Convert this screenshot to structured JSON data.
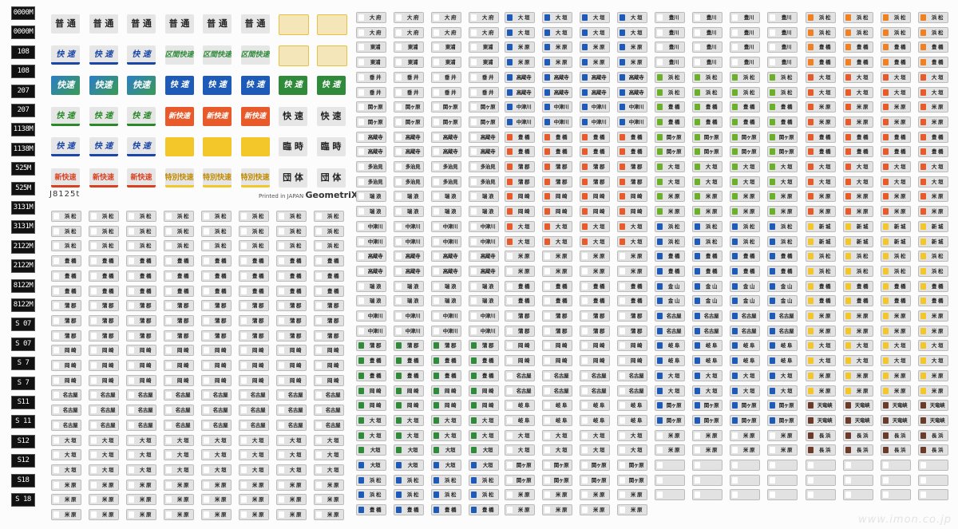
{
  "sheet": {
    "code": "J8125t",
    "brand_prefix": "Printed in JAPAN",
    "brand_name": "GeometriX",
    "watermark": "www.imon.co.jp"
  },
  "numbers": [
    "0000M",
    "0000M",
    "108",
    "108",
    "207",
    "207",
    "1138M",
    "1138M",
    "525M",
    "525M",
    "3131M",
    "3131M",
    "2122M",
    "2122M",
    "8122M",
    "8122M",
    "S 07",
    "S 07",
    "S 7",
    "S 7",
    "S11",
    "S 11",
    "S12",
    "S12",
    "S18",
    "S 18"
  ],
  "big_rows": [
    [
      "普 通",
      "普 通",
      "普 通",
      "普 通",
      "普 通",
      "普 通",
      "",
      ""
    ],
    [
      "快 速",
      "快 速",
      "快 速",
      "区間快速",
      "区間快速",
      "区間快速",
      "",
      ""
    ],
    [
      "快速",
      "快速",
      "快速",
      "快 速",
      "快 速",
      "快 速",
      "快 速",
      "快 速"
    ],
    [
      "快 速",
      "快 速",
      "快 速",
      "新快速",
      "新快速",
      "新快速",
      "快 速",
      "快 速"
    ],
    [
      "快 速",
      "快 速",
      "快 速",
      "",
      "",
      "",
      "臨 時",
      "臨 時"
    ],
    [
      "新快速",
      "新快速",
      "新快速",
      "特別快速",
      "特別快速",
      "特別快速",
      "団 体",
      "団 体"
    ]
  ],
  "colA": [
    "浜 松",
    "浜 松",
    "浜 松",
    "豊 橋",
    "豊 橋",
    "豊 橋",
    "蒲 郡",
    "蒲 郡",
    "蒲 郡",
    "岡 崎",
    "岡 崎",
    "岡 崎",
    "名古屋",
    "名古屋",
    "名古屋",
    "大 垣",
    "大 垣",
    "大 垣",
    "米 原",
    "米 原",
    "米 原"
  ],
  "colB": [
    "大 府",
    "大 府",
    "東浦",
    "東浦",
    "垂 井",
    "垂 井",
    "関ヶ原",
    "関ヶ原",
    "高蔵寺",
    "高蔵寺",
    "多治見",
    "多治見",
    "瑞 浪",
    "瑞 浪",
    "中津川",
    "中津川",
    "高蔵寺",
    "高蔵寺",
    "瑞 浪",
    "瑞 浪",
    "中津川",
    "中津川",
    "蒲 郡",
    "豊 橋",
    "豊 橋",
    "岡 崎",
    "岡 崎",
    "大 垣",
    "大 垣",
    "大垣",
    "大垣",
    "浜 松",
    "浜 松",
    "豊 橋"
  ],
  "colC": [
    "大 垣",
    "大 垣",
    "米 原",
    "米 原",
    "高蔵寺",
    "高蔵寺",
    "中津川",
    "中津川",
    "豊 橋",
    "豊 橋",
    "蒲 郡",
    "蒲 郡",
    "岡 崎",
    "岡 崎",
    "大 垣",
    "大 垣",
    "米 原",
    "米 原",
    "豊 橋",
    "豊 橋",
    "蒲 郡",
    "蒲 郡",
    "岡 崎",
    "岡 崎",
    "名古屋",
    "名古屋",
    "岐 阜",
    "岐 阜",
    "大 垣",
    "大 垣",
    "関ヶ原",
    "関ヶ原",
    "米 原",
    "米 原"
  ],
  "colD": [
    "豊川",
    "豊川",
    "豊川",
    "豊川",
    "浜 松",
    "浜 松",
    "豊 橋",
    "豊 橋",
    "関ヶ原",
    "関ヶ原",
    "大 垣",
    "大 垣",
    "米 原",
    "米 原",
    "浜 松",
    "浜 松",
    "豊 橋",
    "豊 橋",
    "金 山",
    "金 山",
    "名古屋",
    "名古屋",
    "岐 阜",
    "岐 阜",
    "大 垣",
    "大 垣",
    "関ヶ原",
    "関ヶ原",
    "米 原",
    "米 原",
    "",
    "",
    ""
  ],
  "colE": [
    "浜 松",
    "浜 松",
    "豊 橋",
    "豊 橋",
    "大 垣",
    "大 垣",
    "米 原",
    "米 原",
    "豊 橋",
    "豊 橋",
    "大 垣",
    "大 垣",
    "米 原",
    "米 原",
    "新 城",
    "新 城",
    "浜 松",
    "浜 松",
    "豊 橋",
    "豊 橋",
    "米 原",
    "米 原",
    "大 垣",
    "大 垣",
    "米 原",
    "米 原",
    "天竜峡",
    "天竜峡",
    "長 浜",
    "長 浜",
    "",
    "",
    ""
  ]
}
